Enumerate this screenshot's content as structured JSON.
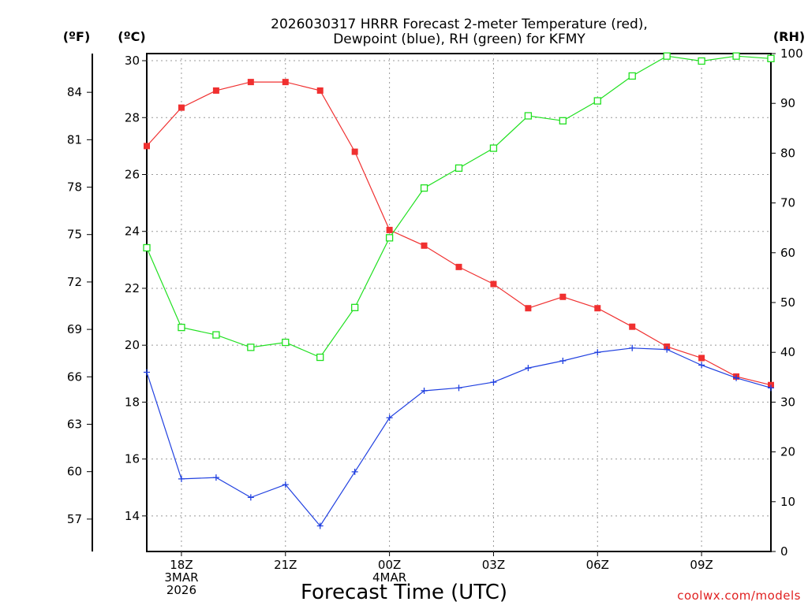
{
  "chart_data": {
    "type": "line",
    "title": [
      "2026030317 HRRR Forecast 2-meter Temperature (red),",
      "Dewpoint (blue), RH (green) for KFMY"
    ],
    "xlabel": "Forecast Time (UTC)",
    "units": {
      "fahrenheit": "(ºF)",
      "celsius": "(ºC)",
      "rh": "(RH)"
    },
    "credit": "coolwx.com/models",
    "x_hours": [
      17,
      18,
      19,
      20,
      21,
      22,
      23,
      24,
      25,
      26,
      27,
      28,
      29,
      30,
      31,
      32,
      33,
      34,
      35
    ],
    "xlim": [
      17,
      35
    ],
    "x_ticks": [
      {
        "hour": 18,
        "lines": [
          "18Z",
          "3MAR",
          "2026"
        ]
      },
      {
        "hour": 21,
        "lines": [
          "21Z"
        ]
      },
      {
        "hour": 24,
        "lines": [
          "00Z",
          "4MAR"
        ]
      },
      {
        "hour": 27,
        "lines": [
          "03Z"
        ]
      },
      {
        "hour": 30,
        "lines": [
          "06Z"
        ]
      },
      {
        "hour": 33,
        "lines": [
          "09Z"
        ]
      }
    ],
    "celsius_axis": {
      "ylim": [
        12.75,
        30.25
      ],
      "ticks": [
        "14",
        "16",
        "18",
        "20",
        "22",
        "24",
        "26",
        "28",
        "30"
      ]
    },
    "fahrenheit_axis": {
      "ticks": [
        "57",
        "60",
        "63",
        "66",
        "69",
        "72",
        "75",
        "78",
        "81",
        "84"
      ]
    },
    "rh_axis": {
      "ylim": [
        0,
        100
      ],
      "ticks": [
        "0",
        "10",
        "20",
        "30",
        "40",
        "50",
        "60",
        "70",
        "80",
        "90",
        "100"
      ]
    },
    "series": [
      {
        "name": "Temperature",
        "unit": "C",
        "axis": "celsius",
        "color": "#f03030",
        "marker": "filled-square",
        "values": [
          27.0,
          28.35,
          28.95,
          29.25,
          29.25,
          28.95,
          26.8,
          24.05,
          23.5,
          22.75,
          22.15,
          21.3,
          21.7,
          21.3,
          20.65,
          19.95,
          19.55,
          18.9,
          18.6
        ]
      },
      {
        "name": "Dewpoint",
        "unit": "C",
        "axis": "celsius",
        "color": "#2040e0",
        "marker": "plus",
        "values": [
          19.05,
          15.3,
          15.35,
          14.65,
          15.1,
          13.65,
          15.55,
          17.45,
          18.4,
          18.5,
          18.7,
          19.2,
          19.45,
          19.75,
          19.9,
          19.85,
          19.3,
          18.85,
          18.5
        ]
      },
      {
        "name": "RH",
        "unit": "%",
        "axis": "rh",
        "color": "#20e020",
        "marker": "open-square",
        "values": [
          61,
          45,
          43.5,
          41,
          42,
          39,
          49,
          63,
          73,
          77,
          81,
          87.5,
          86.5,
          90.5,
          95.5,
          99.5,
          98.5,
          99.5,
          99
        ]
      }
    ]
  }
}
